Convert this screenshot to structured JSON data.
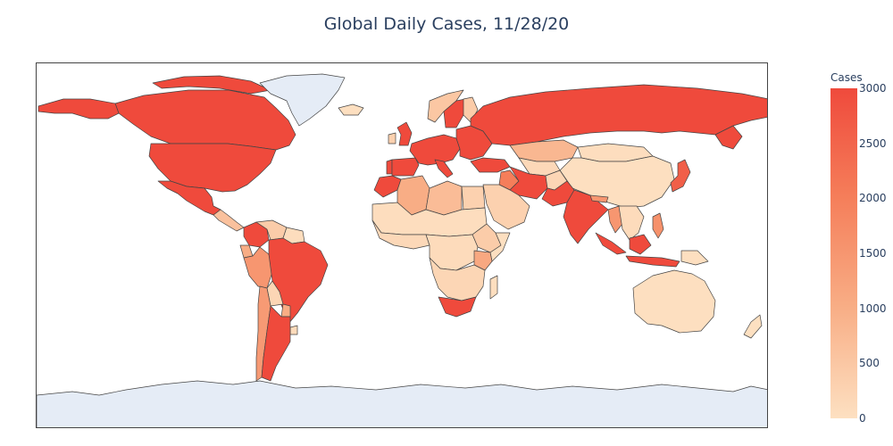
{
  "title": "Global Daily Cases, 11/28/20",
  "colorbar": {
    "title": "Cases",
    "min": 0,
    "max": 3000,
    "ticks": [
      "3000",
      "2500",
      "2000",
      "1500",
      "1000",
      "500",
      "0"
    ],
    "colors": {
      "high": "#ef4a3c",
      "mid_high": "#f57e5a",
      "mid": "#f8ad85",
      "low": "#fde0c1"
    }
  },
  "map": {
    "no_data_color": "#e5ecf6",
    "border_color": "#444444",
    "countries": [
      {
        "name": "Canada",
        "cases": 5000
      },
      {
        "name": "United States",
        "cases": 150000
      },
      {
        "name": "Mexico",
        "cases": 6000
      },
      {
        "name": "Central America",
        "cases": 600
      },
      {
        "name": "Colombia",
        "cases": 7000
      },
      {
        "name": "Venezuela",
        "cases": 400
      },
      {
        "name": "Guianas",
        "cases": 60
      },
      {
        "name": "Ecuador",
        "cases": 1000
      },
      {
        "name": "Peru",
        "cases": 1500
      },
      {
        "name": "Brazil",
        "cases": 30000
      },
      {
        "name": "Bolivia",
        "cases": 200
      },
      {
        "name": "Paraguay",
        "cases": 1000
      },
      {
        "name": "Chile",
        "cases": 1400
      },
      {
        "name": "Argentina",
        "cases": 8000
      },
      {
        "name": "Uruguay",
        "cases": 100
      },
      {
        "name": "Greenland",
        "cases": null
      },
      {
        "name": "Iceland",
        "cases": 10
      },
      {
        "name": "United Kingdom",
        "cases": 16000
      },
      {
        "name": "Ireland",
        "cases": 300
      },
      {
        "name": "Norway",
        "cases": 500
      },
      {
        "name": "Sweden",
        "cases": 5000
      },
      {
        "name": "Finland",
        "cases": 400
      },
      {
        "name": "Western Europe",
        "cases": 20000
      },
      {
        "name": "Eastern Europe",
        "cases": 12000
      },
      {
        "name": "Spain",
        "cases": 10000
      },
      {
        "name": "Portugal",
        "cases": 5000
      },
      {
        "name": "Russia",
        "cases": 27000
      },
      {
        "name": "Turkey",
        "cases": 29000
      },
      {
        "name": "Kazakhstan",
        "cases": 800
      },
      {
        "name": "Central Asia",
        "cases": 150
      },
      {
        "name": "China",
        "cases": 10
      },
      {
        "name": "Mongolia",
        "cases": 50
      },
      {
        "name": "Iran",
        "cases": 13000
      },
      {
        "name": "Iraq",
        "cases": 2000
      },
      {
        "name": "Arabian Peninsula",
        "cases": 300
      },
      {
        "name": "Pakistan",
        "cases": 3000
      },
      {
        "name": "Afghanistan",
        "cases": 200
      },
      {
        "name": "India",
        "cases": 41000
      },
      {
        "name": "Nepal",
        "cases": 1500
      },
      {
        "name": "Myanmar",
        "cases": 1500
      },
      {
        "name": "Southeast Asia",
        "cases": 100
      },
      {
        "name": "Japan",
        "cases": 2600
      },
      {
        "name": "Philippines",
        "cases": 1600
      },
      {
        "name": "Indonesia",
        "cases": 5000
      },
      {
        "name": "Papua New Guinea",
        "cases": 10
      },
      {
        "name": "Australia",
        "cases": 10
      },
      {
        "name": "New Zealand",
        "cases": 5
      },
      {
        "name": "Morocco",
        "cases": 5000
      },
      {
        "name": "Algeria",
        "cases": 1000
      },
      {
        "name": "Libya",
        "cases": 700
      },
      {
        "name": "Egypt",
        "cases": 300
      },
      {
        "name": "Sahel",
        "cases": 50
      },
      {
        "name": "West Africa",
        "cases": 150
      },
      {
        "name": "Central Africa",
        "cases": 100
      },
      {
        "name": "Ethiopia",
        "cases": 400
      },
      {
        "name": "Somalia",
        "cases": 20
      },
      {
        "name": "Kenya",
        "cases": 1100
      },
      {
        "name": "Southern Africa",
        "cases": 200
      },
      {
        "name": "South Africa",
        "cases": 3000
      },
      {
        "name": "Madagascar",
        "cases": 30
      },
      {
        "name": "Antarctica",
        "cases": null
      }
    ]
  }
}
